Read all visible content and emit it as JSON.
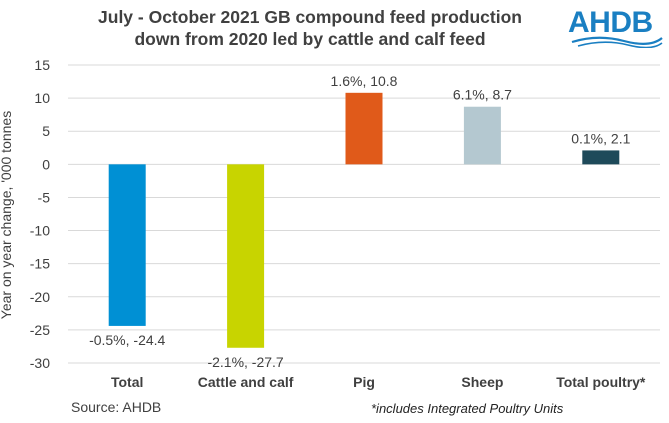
{
  "header": {
    "title_line1": "July - October 2021 GB compound feed production",
    "title_line2": "down from 2020 led by cattle and calf feed"
  },
  "logo": {
    "text": "AHDB",
    "color": "#1a7fc2"
  },
  "footer": {
    "source": "Source: AHDB",
    "footnote": "*includes Integrated Poultry Units"
  },
  "chart_data": {
    "type": "bar",
    "title": "July - October 2021 GB compound feed production down from 2020 led by cattle and calf feed",
    "xlabel": "",
    "ylabel": "Year on year change, '000 tonnes",
    "ylim": [
      -30,
      15
    ],
    "yticks": [
      15,
      10,
      5,
      0,
      -5,
      -10,
      -15,
      -20,
      -25,
      -30
    ],
    "grid": true,
    "categories": [
      "Total",
      "Cattle and calf",
      "Pig",
      "Sheep",
      "Total poultry*"
    ],
    "values": [
      -24.4,
      -27.7,
      10.8,
      8.7,
      2.1
    ],
    "data_labels": [
      "-0.5%, -24.4",
      "-2.1%, -27.7",
      "1.6%, 10.8",
      "6.1%, 8.7",
      "0.1%, 2.1"
    ],
    "colors": [
      "#0090d4",
      "#c8d400",
      "#e05a1a",
      "#b4c8d0",
      "#1e4a5a"
    ]
  }
}
